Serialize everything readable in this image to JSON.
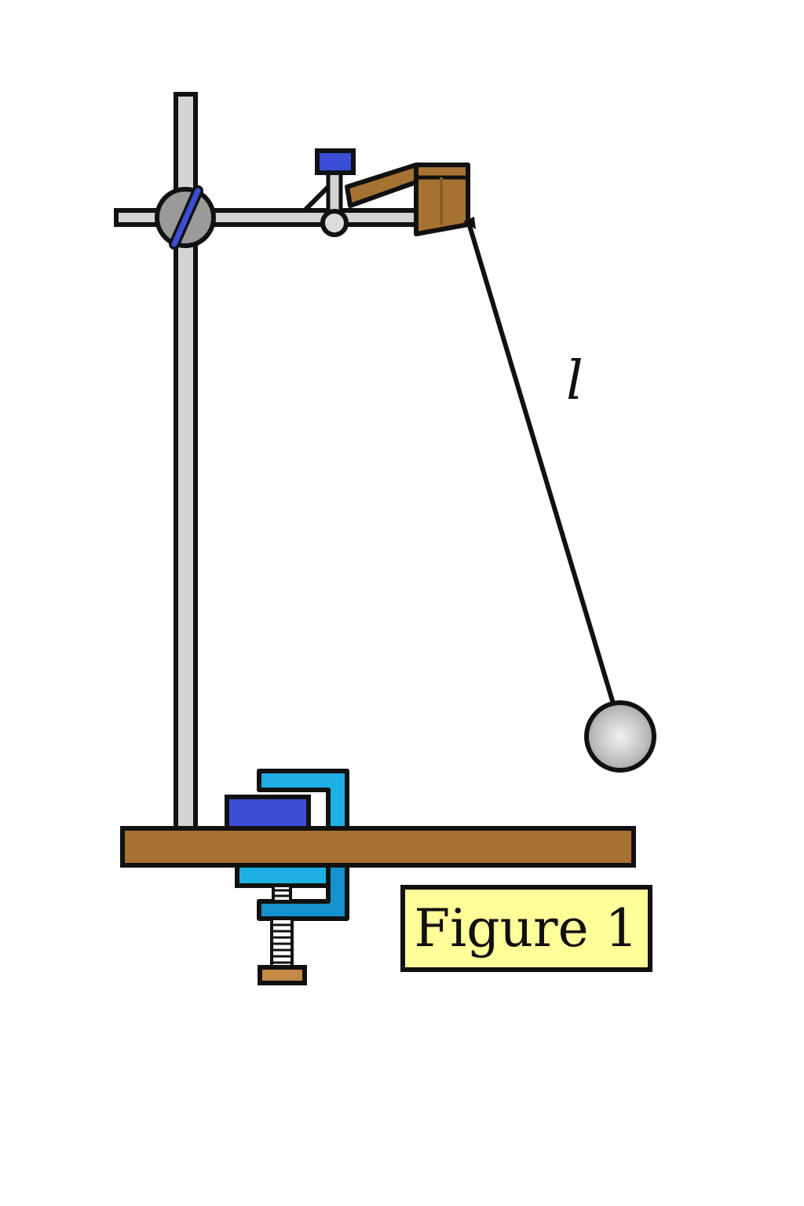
{
  "labels": {
    "length": "l",
    "caption": "Figure 1"
  },
  "colors": {
    "rod": "#d4d4d4",
    "outline": "#111111",
    "knob_gray": "#9a9a9a",
    "screw_blue": "#3a4fd6",
    "wood": "#a67232",
    "wood_light": "#c48a45",
    "clamp_cyan": "#1fb0e3",
    "clamp_cyan_dark": "#1592cc",
    "caption_bg": "#ffff99"
  },
  "icons": {
    "bob": "pendulum-bob-icon",
    "clamp": "c-clamp-icon",
    "boss_head": "boss-head-icon"
  }
}
